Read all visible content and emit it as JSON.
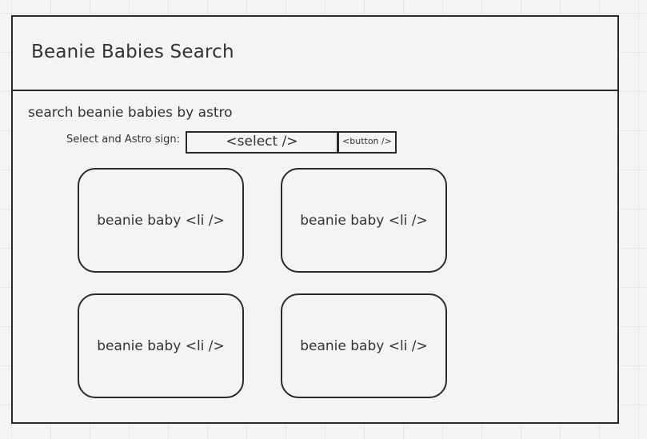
{
  "header": {
    "title": "Beanie Babies Search"
  },
  "search": {
    "subtitle": "search beanie babies by astro",
    "select_label": "Select and Astro sign:",
    "select_text": "<select />",
    "button_text": "<button />"
  },
  "results": {
    "items": [
      {
        "label": "beanie baby <li />"
      },
      {
        "label": "beanie baby <li />"
      },
      {
        "label": "beanie baby <li />"
      },
      {
        "label": "beanie baby <li />"
      }
    ]
  }
}
